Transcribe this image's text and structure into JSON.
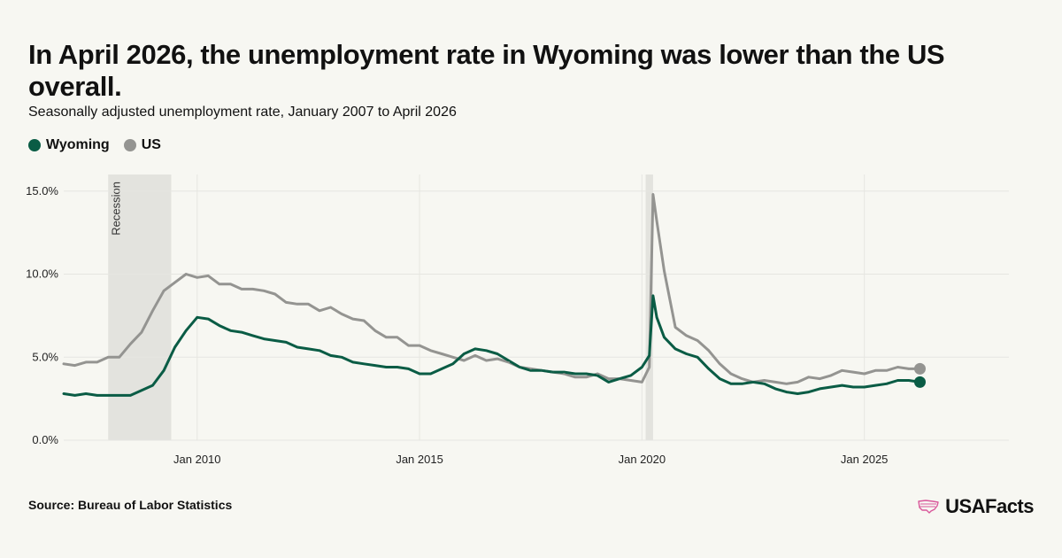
{
  "header": {
    "title": "In April 2026, the unemployment rate in Wyoming was lower than the US overall.",
    "subtitle": "Seasonally adjusted unemployment rate, January 2007 to April 2026"
  },
  "footer": {
    "source": "Source: Bureau of Labor Statistics",
    "brand": "USAFacts"
  },
  "colors": {
    "wyoming": "#0a5c45",
    "us": "#949491",
    "recession": "#e3e3de",
    "grid": "#e6e6e1",
    "brand_icon": "#d9579a"
  },
  "chart_data": {
    "type": "line",
    "title": "In April 2026, the unemployment rate in Wyoming was lower than the US overall.",
    "subtitle": "Seasonally adjusted unemployment rate, January 2007 to April 2026",
    "legend": {
      "position": "top-left"
    },
    "grid": true,
    "xlim": [
      "2007-01",
      "2028-04"
    ],
    "ylim": [
      0,
      16
    ],
    "x_ticks": [
      {
        "date": "2010-01",
        "label": "Jan 2010"
      },
      {
        "date": "2015-01",
        "label": "Jan 2015"
      },
      {
        "date": "2020-01",
        "label": "Jan 2020"
      },
      {
        "date": "2025-01",
        "label": "Jan 2025"
      }
    ],
    "y_ticks": [
      {
        "value": 0,
        "label": "0.0%"
      },
      {
        "value": 5,
        "label": "5.0%"
      },
      {
        "value": 10,
        "label": "10.0%"
      },
      {
        "value": 15,
        "label": "15.0%"
      }
    ],
    "shaded_periods": [
      {
        "start": "2008-01",
        "end": "2009-06",
        "label": "Recession"
      },
      {
        "start": "2020-02",
        "end": "2020-04",
        "label": ""
      }
    ],
    "series": [
      {
        "name": "Wyoming",
        "color": "#0a5c45",
        "points": [
          [
            "2007-01",
            2.8
          ],
          [
            "2007-04",
            2.7
          ],
          [
            "2007-07",
            2.8
          ],
          [
            "2007-10",
            2.7
          ],
          [
            "2008-01",
            2.7
          ],
          [
            "2008-04",
            2.7
          ],
          [
            "2008-07",
            2.7
          ],
          [
            "2008-10",
            3.0
          ],
          [
            "2009-01",
            3.3
          ],
          [
            "2009-04",
            4.2
          ],
          [
            "2009-07",
            5.6
          ],
          [
            "2009-10",
            6.6
          ],
          [
            "2010-01",
            7.4
          ],
          [
            "2010-04",
            7.3
          ],
          [
            "2010-07",
            6.9
          ],
          [
            "2010-10",
            6.6
          ],
          [
            "2011-01",
            6.5
          ],
          [
            "2011-04",
            6.3
          ],
          [
            "2011-07",
            6.1
          ],
          [
            "2011-10",
            6.0
          ],
          [
            "2012-01",
            5.9
          ],
          [
            "2012-04",
            5.6
          ],
          [
            "2012-07",
            5.5
          ],
          [
            "2012-10",
            5.4
          ],
          [
            "2013-01",
            5.1
          ],
          [
            "2013-04",
            5.0
          ],
          [
            "2013-07",
            4.7
          ],
          [
            "2013-10",
            4.6
          ],
          [
            "2014-01",
            4.5
          ],
          [
            "2014-04",
            4.4
          ],
          [
            "2014-07",
            4.4
          ],
          [
            "2014-10",
            4.3
          ],
          [
            "2015-01",
            4.0
          ],
          [
            "2015-04",
            4.0
          ],
          [
            "2015-07",
            4.3
          ],
          [
            "2015-10",
            4.6
          ],
          [
            "2016-01",
            5.2
          ],
          [
            "2016-04",
            5.5
          ],
          [
            "2016-07",
            5.4
          ],
          [
            "2016-10",
            5.2
          ],
          [
            "2017-01",
            4.8
          ],
          [
            "2017-04",
            4.4
          ],
          [
            "2017-07",
            4.2
          ],
          [
            "2017-10",
            4.2
          ],
          [
            "2018-01",
            4.1
          ],
          [
            "2018-04",
            4.1
          ],
          [
            "2018-07",
            4.0
          ],
          [
            "2018-10",
            4.0
          ],
          [
            "2019-01",
            3.9
          ],
          [
            "2019-04",
            3.5
          ],
          [
            "2019-07",
            3.7
          ],
          [
            "2019-10",
            3.9
          ],
          [
            "2020-01",
            4.4
          ],
          [
            "2020-03",
            5.1
          ],
          [
            "2020-04",
            8.7
          ],
          [
            "2020-05",
            7.4
          ],
          [
            "2020-07",
            6.2
          ],
          [
            "2020-10",
            5.5
          ],
          [
            "2021-01",
            5.2
          ],
          [
            "2021-04",
            5.0
          ],
          [
            "2021-07",
            4.3
          ],
          [
            "2021-10",
            3.7
          ],
          [
            "2022-01",
            3.4
          ],
          [
            "2022-04",
            3.4
          ],
          [
            "2022-07",
            3.5
          ],
          [
            "2022-10",
            3.4
          ],
          [
            "2023-01",
            3.1
          ],
          [
            "2023-04",
            2.9
          ],
          [
            "2023-07",
            2.8
          ],
          [
            "2023-10",
            2.9
          ],
          [
            "2024-01",
            3.1
          ],
          [
            "2024-04",
            3.2
          ],
          [
            "2024-07",
            3.3
          ],
          [
            "2024-10",
            3.2
          ],
          [
            "2025-01",
            3.2
          ],
          [
            "2025-04",
            3.3
          ],
          [
            "2025-07",
            3.4
          ],
          [
            "2025-10",
            3.6
          ],
          [
            "2026-01",
            3.6
          ],
          [
            "2026-04",
            3.5
          ]
        ]
      },
      {
        "name": "US",
        "color": "#949491",
        "points": [
          [
            "2007-01",
            4.6
          ],
          [
            "2007-04",
            4.5
          ],
          [
            "2007-07",
            4.7
          ],
          [
            "2007-10",
            4.7
          ],
          [
            "2008-01",
            5.0
          ],
          [
            "2008-04",
            5.0
          ],
          [
            "2008-07",
            5.8
          ],
          [
            "2008-10",
            6.5
          ],
          [
            "2009-01",
            7.8
          ],
          [
            "2009-04",
            9.0
          ],
          [
            "2009-07",
            9.5
          ],
          [
            "2009-10",
            10.0
          ],
          [
            "2010-01",
            9.8
          ],
          [
            "2010-04",
            9.9
          ],
          [
            "2010-07",
            9.4
          ],
          [
            "2010-10",
            9.4
          ],
          [
            "2011-01",
            9.1
          ],
          [
            "2011-04",
            9.1
          ],
          [
            "2011-07",
            9.0
          ],
          [
            "2011-10",
            8.8
          ],
          [
            "2012-01",
            8.3
          ],
          [
            "2012-04",
            8.2
          ],
          [
            "2012-07",
            8.2
          ],
          [
            "2012-10",
            7.8
          ],
          [
            "2013-01",
            8.0
          ],
          [
            "2013-04",
            7.6
          ],
          [
            "2013-07",
            7.3
          ],
          [
            "2013-10",
            7.2
          ],
          [
            "2014-01",
            6.6
          ],
          [
            "2014-04",
            6.2
          ],
          [
            "2014-07",
            6.2
          ],
          [
            "2014-10",
            5.7
          ],
          [
            "2015-01",
            5.7
          ],
          [
            "2015-04",
            5.4
          ],
          [
            "2015-07",
            5.2
          ],
          [
            "2015-10",
            5.0
          ],
          [
            "2016-01",
            4.8
          ],
          [
            "2016-04",
            5.1
          ],
          [
            "2016-07",
            4.8
          ],
          [
            "2016-10",
            4.9
          ],
          [
            "2017-01",
            4.7
          ],
          [
            "2017-04",
            4.4
          ],
          [
            "2017-07",
            4.3
          ],
          [
            "2017-10",
            4.2
          ],
          [
            "2018-01",
            4.1
          ],
          [
            "2018-04",
            4.0
          ],
          [
            "2018-07",
            3.8
          ],
          [
            "2018-10",
            3.8
          ],
          [
            "2019-01",
            4.0
          ],
          [
            "2019-04",
            3.7
          ],
          [
            "2019-07",
            3.7
          ],
          [
            "2019-10",
            3.6
          ],
          [
            "2020-01",
            3.5
          ],
          [
            "2020-03",
            4.4
          ],
          [
            "2020-04",
            14.8
          ],
          [
            "2020-05",
            13.2
          ],
          [
            "2020-07",
            10.2
          ],
          [
            "2020-10",
            6.8
          ],
          [
            "2021-01",
            6.3
          ],
          [
            "2021-04",
            6.0
          ],
          [
            "2021-07",
            5.4
          ],
          [
            "2021-10",
            4.6
          ],
          [
            "2022-01",
            4.0
          ],
          [
            "2022-04",
            3.7
          ],
          [
            "2022-07",
            3.5
          ],
          [
            "2022-10",
            3.6
          ],
          [
            "2023-01",
            3.5
          ],
          [
            "2023-04",
            3.4
          ],
          [
            "2023-07",
            3.5
          ],
          [
            "2023-10",
            3.8
          ],
          [
            "2024-01",
            3.7
          ],
          [
            "2024-04",
            3.9
          ],
          [
            "2024-07",
            4.2
          ],
          [
            "2024-10",
            4.1
          ],
          [
            "2025-01",
            4.0
          ],
          [
            "2025-04",
            4.2
          ],
          [
            "2025-07",
            4.2
          ],
          [
            "2025-10",
            4.4
          ],
          [
            "2026-01",
            4.3
          ],
          [
            "2026-04",
            4.3
          ]
        ]
      }
    ]
  }
}
